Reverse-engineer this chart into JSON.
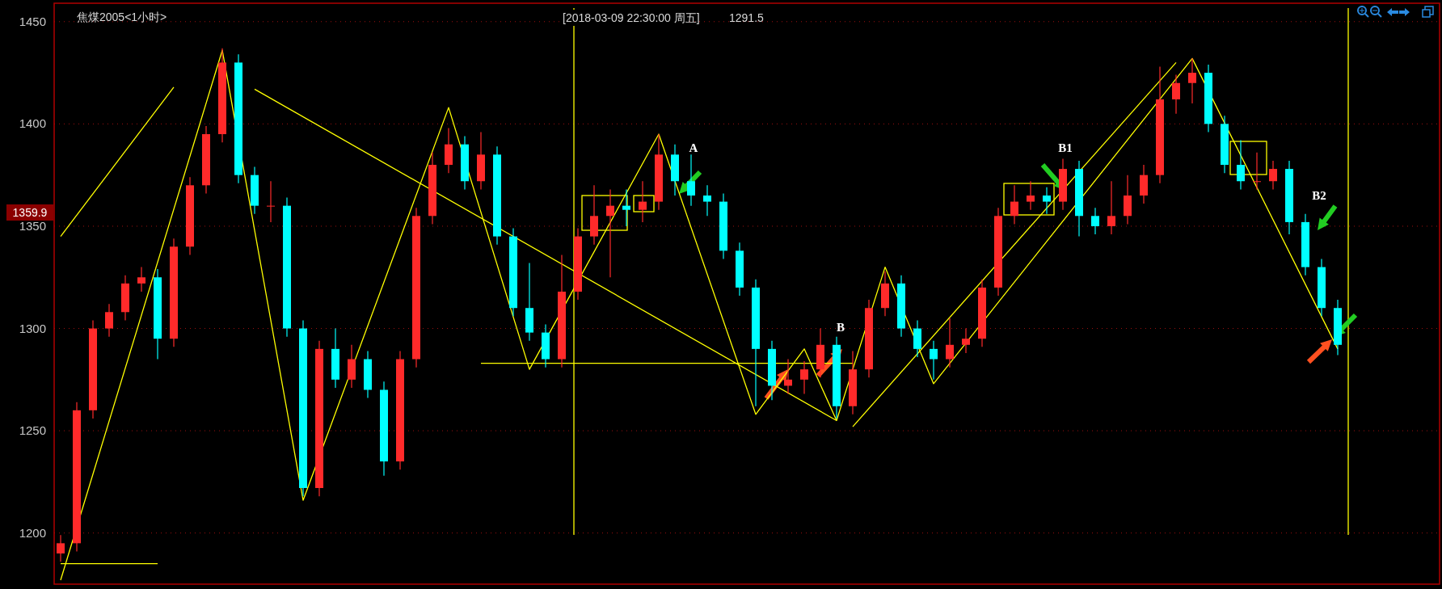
{
  "chart_data": {
    "type": "candlestick",
    "tick_labels": "y",
    "grid": "y",
    "marker": "none",
    "annotations": [
      "焦煤2005<1小时>",
      "[2018-03-09  22:30:00 周五]",
      "1291.5",
      "A",
      "B",
      "B1",
      "B2",
      "1359.9"
    ],
    "ylim": [
      1175,
      1459
    ],
    "yticks": [
      1200,
      1250,
      1300,
      1350,
      1400,
      1450
    ],
    "categories": [
      null,
      null,
      null,
      null,
      null,
      null,
      null,
      null,
      null,
      null,
      null,
      null,
      null,
      null,
      null,
      null,
      null,
      null,
      null,
      null,
      null,
      null,
      null,
      null,
      null,
      null,
      null,
      null,
      null,
      null,
      null,
      null,
      null,
      null,
      null,
      null,
      null,
      null,
      null,
      null,
      null,
      null,
      null,
      null,
      null,
      null,
      null,
      null,
      null,
      null,
      null,
      null,
      null,
      null,
      null,
      null,
      null,
      null,
      null,
      null,
      null,
      null,
      null,
      null,
      null,
      null,
      null,
      null,
      null,
      null,
      null,
      null,
      null,
      null,
      null,
      null,
      null,
      null,
      null,
      null
    ],
    "ohlc": [
      [
        1190,
        1199,
        1186,
        1195
      ],
      [
        1195,
        1264,
        1191,
        1260
      ],
      [
        1260,
        1304,
        1256,
        1300
      ],
      [
        1300,
        1312,
        1296,
        1308
      ],
      [
        1308,
        1326,
        1304,
        1322
      ],
      [
        1322,
        1330,
        1318,
        1325
      ],
      [
        1325,
        1329,
        1285,
        1295
      ],
      [
        1295,
        1344,
        1291,
        1340
      ],
      [
        1340,
        1374,
        1336,
        1370
      ],
      [
        1370,
        1399,
        1366,
        1395
      ],
      [
        1395,
        1437,
        1391,
        1430
      ],
      [
        1430,
        1434,
        1371,
        1375
      ],
      [
        1375,
        1379,
        1356,
        1360
      ],
      [
        1360,
        1372,
        1352,
        1360
      ],
      [
        1360,
        1364,
        1296,
        1300
      ],
      [
        1300,
        1304,
        1218,
        1222
      ],
      [
        1222,
        1294,
        1218,
        1290
      ],
      [
        1290,
        1300,
        1271,
        1275
      ],
      [
        1275,
        1292,
        1271,
        1285
      ],
      [
        1285,
        1289,
        1266,
        1270
      ],
      [
        1270,
        1274,
        1228,
        1235
      ],
      [
        1235,
        1289,
        1231,
        1285
      ],
      [
        1285,
        1359,
        1281,
        1355
      ],
      [
        1355,
        1386,
        1351,
        1380
      ],
      [
        1380,
        1398,
        1376,
        1390
      ],
      [
        1390,
        1394,
        1368,
        1372
      ],
      [
        1372,
        1396,
        1368,
        1385
      ],
      [
        1385,
        1389,
        1341,
        1345
      ],
      [
        1345,
        1349,
        1306,
        1310
      ],
      [
        1310,
        1332,
        1294,
        1298
      ],
      [
        1298,
        1302,
        1281,
        1285
      ],
      [
        1285,
        1336,
        1281,
        1318
      ],
      [
        1318,
        1349,
        1314,
        1345
      ],
      [
        1345,
        1370,
        1341,
        1355
      ],
      [
        1355,
        1368,
        1325,
        1360
      ],
      [
        1360,
        1368,
        1350,
        1358
      ],
      [
        1358,
        1372,
        1352,
        1362
      ],
      [
        1362,
        1395,
        1358,
        1385
      ],
      [
        1385,
        1390,
        1365,
        1372
      ],
      [
        1372,
        1385,
        1360,
        1365
      ],
      [
        1365,
        1370,
        1355,
        1362
      ],
      [
        1362,
        1366,
        1334,
        1338
      ],
      [
        1338,
        1342,
        1316,
        1320
      ],
      [
        1320,
        1324,
        1262,
        1290
      ],
      [
        1290,
        1294,
        1265,
        1272
      ],
      [
        1272,
        1285,
        1268,
        1275
      ],
      [
        1275,
        1284,
        1268,
        1280
      ],
      [
        1280,
        1300,
        1276,
        1292
      ],
      [
        1292,
        1296,
        1256,
        1262
      ],
      [
        1262,
        1289,
        1258,
        1280
      ],
      [
        1280,
        1314,
        1276,
        1310
      ],
      [
        1310,
        1328,
        1306,
        1322
      ],
      [
        1322,
        1326,
        1296,
        1300
      ],
      [
        1300,
        1304,
        1286,
        1290
      ],
      [
        1290,
        1294,
        1275,
        1285
      ],
      [
        1285,
        1305,
        1281,
        1292
      ],
      [
        1292,
        1300,
        1288,
        1295
      ],
      [
        1295,
        1324,
        1291,
        1320
      ],
      [
        1320,
        1359,
        1316,
        1355
      ],
      [
        1355,
        1370,
        1351,
        1362
      ],
      [
        1362,
        1372,
        1358,
        1365
      ],
      [
        1365,
        1369,
        1356,
        1362
      ],
      [
        1362,
        1383,
        1358,
        1378
      ],
      [
        1378,
        1382,
        1345,
        1355
      ],
      [
        1355,
        1359,
        1346,
        1350
      ],
      [
        1350,
        1372,
        1346,
        1355
      ],
      [
        1355,
        1375,
        1351,
        1365
      ],
      [
        1365,
        1380,
        1361,
        1375
      ],
      [
        1375,
        1428,
        1371,
        1412
      ],
      [
        1412,
        1424,
        1405,
        1420
      ],
      [
        1420,
        1432,
        1410,
        1425
      ],
      [
        1425,
        1429,
        1396,
        1400
      ],
      [
        1400,
        1404,
        1376,
        1380
      ],
      [
        1380,
        1392,
        1368,
        1372
      ],
      [
        1372,
        1386,
        1368,
        1372
      ],
      [
        1372,
        1382,
        1368,
        1378
      ],
      [
        1378,
        1382,
        1346,
        1352
      ],
      [
        1352,
        1356,
        1326,
        1330
      ],
      [
        1330,
        1334,
        1306,
        1310
      ],
      [
        1310,
        1314,
        1287,
        1292
      ]
    ],
    "series": [
      {
        "type": "line",
        "color": "#ffff00",
        "values": [
          1177,
          null,
          null,
          null,
          null,
          null,
          null,
          null,
          null,
          null,
          1436,
          null,
          null,
          null,
          null,
          1216,
          null,
          null,
          null,
          null,
          null,
          null,
          null,
          null,
          1408,
          null,
          null,
          null,
          null,
          1280,
          null,
          null,
          null,
          null,
          null,
          null,
          null,
          1395,
          null,
          null,
          null,
          null,
          null,
          1258,
          null,
          null,
          1290,
          null,
          1255,
          null,
          null,
          1330,
          null,
          null,
          1273,
          null,
          null,
          null,
          null,
          null,
          null,
          null,
          null,
          null,
          null,
          null,
          null,
          null,
          null,
          null,
          1432,
          null,
          null,
          null,
          null,
          null,
          null,
          null,
          null,
          1290
        ]
      },
      {
        "type": "line",
        "color": "#ffff00",
        "values": [
          null,
          null,
          null,
          null,
          null,
          null,
          null,
          null,
          null,
          null,
          null,
          null,
          1417,
          null,
          null,
          null,
          null,
          null,
          null,
          null,
          null,
          null,
          null,
          null,
          null,
          null,
          null,
          null,
          null,
          null,
          null,
          null,
          null,
          null,
          null,
          null,
          null,
          null,
          null,
          null,
          null,
          null,
          null,
          null,
          null,
          null,
          null,
          null,
          1255,
          null,
          null,
          null,
          null,
          null,
          null,
          null,
          null,
          null,
          null,
          null,
          null,
          null,
          null,
          null,
          null,
          null,
          null,
          null,
          null,
          null,
          null,
          null,
          null,
          null,
          null,
          null,
          null,
          null,
          null,
          null
        ]
      },
      {
        "type": "line",
        "color": "#ffff00",
        "values": [
          null,
          null,
          null,
          null,
          null,
          null,
          null,
          null,
          null,
          null,
          null,
          null,
          null,
          null,
          null,
          null,
          null,
          null,
          null,
          null,
          null,
          null,
          null,
          null,
          null,
          null,
          1283,
          null,
          null,
          null,
          null,
          null,
          null,
          null,
          null,
          null,
          null,
          null,
          null,
          null,
          null,
          null,
          null,
          null,
          null,
          null,
          null,
          null,
          null,
          1283,
          null,
          null,
          null,
          null,
          null,
          null,
          null,
          null,
          null,
          null,
          null,
          null,
          null,
          null,
          null,
          null,
          null,
          null,
          null,
          null,
          null,
          null,
          null,
          null,
          null,
          null,
          null,
          null,
          null,
          null
        ]
      },
      {
        "type": "line",
        "color": "#ffff00",
        "values": [
          null,
          null,
          null,
          null,
          null,
          null,
          null,
          null,
          null,
          null,
          null,
          null,
          null,
          null,
          null,
          null,
          null,
          null,
          null,
          null,
          null,
          null,
          null,
          null,
          null,
          null,
          null,
          null,
          null,
          null,
          null,
          null,
          null,
          null,
          null,
          null,
          null,
          null,
          null,
          null,
          null,
          null,
          null,
          null,
          null,
          null,
          null,
          null,
          null,
          1252,
          null,
          null,
          null,
          null,
          null,
          null,
          null,
          null,
          null,
          null,
          null,
          null,
          null,
          null,
          null,
          null,
          null,
          null,
          null,
          1430,
          null,
          null,
          null,
          null,
          null,
          null,
          null,
          null,
          null,
          null
        ]
      },
      {
        "type": "line",
        "color": "#ffff00",
        "values": [
          1345,
          null,
          null,
          null,
          null,
          null,
          null,
          1418,
          null,
          null,
          null,
          null,
          null,
          null,
          null,
          null,
          null,
          null,
          null,
          null,
          null,
          null,
          null,
          null,
          null,
          null,
          null,
          null,
          null,
          null,
          null,
          null,
          null,
          null,
          null,
          null,
          null,
          null,
          null,
          null,
          null,
          null,
          null,
          null,
          null,
          null,
          null,
          null,
          null,
          null,
          null,
          null,
          null,
          null,
          null,
          null,
          null,
          null,
          null,
          null,
          null,
          null,
          null,
          null,
          null,
          null,
          null,
          null,
          null,
          null,
          null,
          null,
          null,
          null,
          null,
          null,
          null,
          null,
          null,
          null
        ]
      },
      {
        "type": "line",
        "color": "#ffff00",
        "values": [
          1185,
          null,
          null,
          null,
          null,
          null,
          1185,
          null,
          null,
          null,
          null,
          null,
          null,
          null,
          null,
          null,
          null,
          null,
          null,
          null,
          null,
          null,
          null,
          null,
          null,
          null,
          null,
          null,
          null,
          null,
          null,
          null,
          null,
          null,
          null,
          null,
          null,
          null,
          null,
          null,
          null,
          null,
          null,
          null,
          null,
          null,
          null,
          null,
          null,
          null,
          null,
          null,
          null,
          null,
          null,
          null,
          null,
          null,
          null,
          null,
          null,
          null,
          null,
          null,
          null,
          null,
          null,
          null,
          null,
          null,
          null,
          null,
          null,
          null,
          null,
          null,
          null,
          null,
          null,
          null
        ]
      }
    ]
  }
}
